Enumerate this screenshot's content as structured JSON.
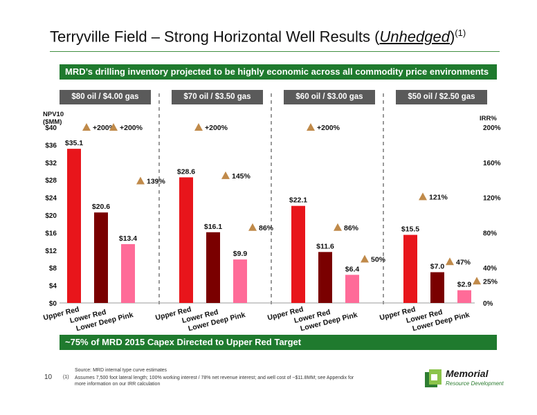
{
  "header": {
    "title_main": "Terryville Field – Strong Horizontal Well Results (",
    "title_emph": "Unhedged",
    "title_close": ")",
    "title_sup": "(1)"
  },
  "banner_top": "MRD’s drilling inventory projected to be highly economic across all commodity price environments",
  "banner_bottom": "~75% of MRD 2015 Capex Directed to Upper Red Target",
  "chart_data": {
    "type": "bar",
    "left_axis_label_line1": "NPV10",
    "left_axis_label_line2": "($MM)",
    "right_axis_label": "IRR%",
    "left_ticks": [
      "$0",
      "$4",
      "$8",
      "$12",
      "$16",
      "$20",
      "$24",
      "$28",
      "$32",
      "$36",
      "$40"
    ],
    "right_ticks": [
      "0%",
      "40%",
      "80%",
      "120%",
      "160%",
      "200%"
    ],
    "ylim_left": [
      0,
      40
    ],
    "ylim_right": [
      0,
      200
    ],
    "categories": [
      "Upper Red",
      "Lower Red",
      "Lower Deep Pink"
    ],
    "category_colors": [
      "#e8151b",
      "#7a0000",
      "#ff6b98"
    ],
    "irr_marker_color": "#c08a4a",
    "groups": [
      {
        "scenario": "$80 oil / $4.00 gas",
        "npv": [
          35.1,
          20.6,
          13.4
        ],
        "npv_labels": [
          "$35.1",
          "$20.6",
          "$13.4"
        ],
        "irr": [
          200,
          200,
          139
        ],
        "irr_labels": [
          "+200%",
          "+200%",
          "139%"
        ]
      },
      {
        "scenario": "$70 oil / $3.50 gas",
        "npv": [
          28.6,
          16.1,
          9.9
        ],
        "npv_labels": [
          "$28.6",
          "$16.1",
          "$9.9"
        ],
        "irr": [
          200,
          145,
          86
        ],
        "irr_labels": [
          "+200%",
          "145%",
          "86%"
        ]
      },
      {
        "scenario": "$60 oil / $3.00 gas",
        "npv": [
          22.1,
          11.6,
          6.4
        ],
        "npv_labels": [
          "$22.1",
          "$11.6",
          "$6.4"
        ],
        "irr": [
          200,
          86,
          50
        ],
        "irr_labels": [
          "+200%",
          "86%",
          "50%"
        ]
      },
      {
        "scenario": "$50 oil / $2.50 gas",
        "npv": [
          15.5,
          7.0,
          2.9
        ],
        "npv_labels": [
          "$15.5",
          "$7.0",
          "$2.9"
        ],
        "irr": [
          121,
          47,
          25
        ],
        "irr_labels": [
          "121%",
          "47%",
          "25%"
        ]
      }
    ]
  },
  "footer": {
    "page_number": "10",
    "source": "Source: MRD internal type curve estimates",
    "footnote_num": "(1)",
    "footnote_text": "Assumes 7,500 foot lateral length; 100% working interest / 78% net revenue interest; and well cost of ~$11.8MM; see Appendix for more information on our IRR calculation",
    "logo_name": "Memorial",
    "logo_tagline": "Resource Development"
  }
}
